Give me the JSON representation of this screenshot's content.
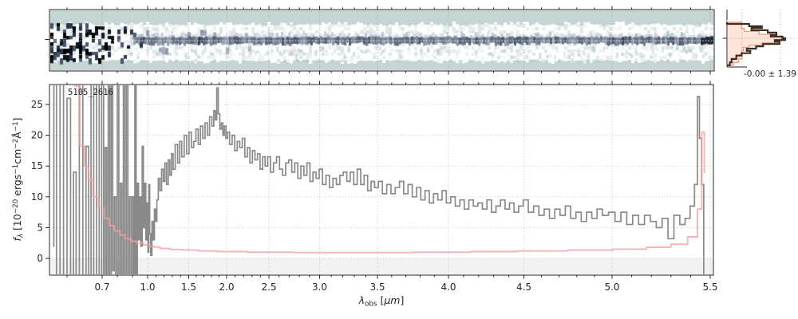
{
  "figure": {
    "object_label": "5105_2616",
    "residual_stats": "-0.00 ± 1.39",
    "xlabel_tokens": [
      [
        "λ",
        "i"
      ],
      [
        "obs",
        "sub"
      ],
      [
        " [",
        "n"
      ],
      [
        "μm",
        "i"
      ],
      [
        "]",
        "n"
      ]
    ],
    "ylabel_tokens": [
      [
        "f",
        "i"
      ],
      [
        "λ",
        "isub"
      ],
      [
        " [10",
        "n"
      ],
      [
        "−20",
        "sup"
      ],
      [
        " ergs",
        "n"
      ],
      [
        "−1",
        "sup"
      ],
      [
        "cm",
        "n"
      ],
      [
        "−2",
        "sup"
      ],
      [
        "Å",
        "n"
      ],
      [
        "−1",
        "sup"
      ],
      [
        "]",
        "n"
      ]
    ]
  },
  "colors": {
    "flux_line": "#8a8a8a",
    "error_line": "#f3a0a0",
    "grid": "#c3c3c3",
    "spine": "#262626",
    "twod_background": "#c4d5d4",
    "trace": "#3d4c64",
    "hist_data_line": "#3e2d24",
    "hist_model_fill": "rgba(246,150,108,0.25)",
    "hist_model_edge": "#f19b7c",
    "below_zero_shade": "rgba(0,0,0,0.05)"
  },
  "axes": {
    "x": {
      "tick_values": [
        0.7,
        1.0,
        1.5,
        2.0,
        2.5,
        3.0,
        3.5,
        4.0,
        4.5,
        5.0,
        5.5
      ],
      "tick_labels": [
        "0.7",
        "1.0",
        "1.5",
        "2.0",
        "2.5",
        "3.0",
        "3.5",
        "4.0",
        "4.5",
        "5.0",
        "5.5"
      ],
      "minor_step": 0.1,
      "range": [
        0.55,
        5.52
      ]
    },
    "y": {
      "tick_values": [
        0,
        5,
        10,
        15,
        20,
        25
      ],
      "tick_labels": [
        "0",
        "5",
        "10",
        "15",
        "20",
        "25"
      ],
      "range": [
        -2.8,
        28.2
      ]
    }
  },
  "chart_data": {
    "type": "line",
    "title": "",
    "xlabel": "lambda_obs [micron]",
    "ylabel": "f_lambda [1e-20 ergs-1 cm-2 A-1]",
    "xlim": [
      0.55,
      5.52
    ],
    "ylim": [
      -2.8,
      28.2
    ],
    "grid": true,
    "annotation": "5105_2616",
    "series": [
      {
        "name": "flux",
        "style": "steps-mid",
        "x": [
          0.56,
          0.565,
          0.575,
          0.585,
          0.595,
          0.605,
          0.615,
          0.622,
          0.63,
          0.64,
          0.65,
          0.658,
          0.665,
          0.672,
          0.68,
          0.688,
          0.695,
          0.705,
          0.715,
          0.725,
          0.735,
          0.745,
          0.755,
          0.765,
          0.775,
          0.785,
          0.795,
          0.805,
          0.815,
          0.825,
          0.835,
          0.845,
          0.855,
          0.865,
          0.875,
          0.885,
          0.895,
          0.905,
          0.912,
          0.92,
          0.928,
          0.936,
          0.944,
          0.952,
          0.96,
          0.968,
          0.976,
          0.984,
          0.992,
          1.0,
          1.01,
          1.02,
          1.03,
          1.045,
          1.06,
          1.075,
          1.09,
          1.105,
          1.12,
          1.14,
          1.16,
          1.18,
          1.2,
          1.22,
          1.24,
          1.26,
          1.28,
          1.3,
          1.32,
          1.35,
          1.38,
          1.4,
          1.43,
          1.46,
          1.49,
          1.52,
          1.55,
          1.58,
          1.61,
          1.64,
          1.67,
          1.7,
          1.73,
          1.76,
          1.79,
          1.82,
          1.84,
          1.86,
          1.88,
          1.9,
          1.92,
          1.94,
          1.96,
          1.98,
          2.0,
          2.02,
          2.05,
          2.08,
          2.11,
          2.14,
          2.17,
          2.2,
          2.23,
          2.26,
          2.29,
          2.32,
          2.35,
          2.38,
          2.41,
          2.44,
          2.47,
          2.5,
          2.53,
          2.56,
          2.59,
          2.62,
          2.65,
          2.68,
          2.71,
          2.74,
          2.77,
          2.8,
          2.83,
          2.86,
          2.89,
          2.92,
          2.95,
          2.98,
          3.01,
          3.04,
          3.07,
          3.1,
          3.13,
          3.16,
          3.19,
          3.22,
          3.25,
          3.28,
          3.31,
          3.34,
          3.37,
          3.4,
          3.43,
          3.46,
          3.49,
          3.52,
          3.55,
          3.58,
          3.61,
          3.64,
          3.67,
          3.7,
          3.73,
          3.76,
          3.79,
          3.82,
          3.85,
          3.88,
          3.91,
          3.94,
          3.97,
          4.0,
          4.03,
          4.06,
          4.09,
          4.12,
          4.15,
          4.18,
          4.21,
          4.24,
          4.27,
          4.3,
          4.33,
          4.36,
          4.39,
          4.42,
          4.45,
          4.48,
          4.51,
          4.54,
          4.57,
          4.6,
          4.63,
          4.66,
          4.69,
          4.72,
          4.75,
          4.78,
          4.81,
          4.84,
          4.87,
          4.9,
          4.93,
          4.96,
          5.0,
          5.03,
          5.06,
          5.09,
          5.12,
          5.15,
          5.18,
          5.21,
          5.24,
          5.27,
          5.3,
          5.33,
          5.36,
          5.385,
          5.41,
          5.43,
          5.44,
          5.45,
          5.462,
          5.472
        ],
        "y": [
          2,
          29,
          -4,
          29,
          -4,
          26,
          -4,
          14,
          -4,
          29,
          -4,
          18.2,
          -4,
          29,
          -4,
          29,
          -4,
          29,
          -4,
          18,
          -4,
          29,
          -4,
          29,
          -2,
          10,
          -4,
          29,
          -4,
          12.2,
          -4,
          29,
          -4,
          29,
          -4,
          10,
          -4,
          10,
          -4,
          29,
          -4,
          12.2,
          3,
          10,
          2,
          18.2,
          5,
          12.2,
          3,
          9,
          1,
          12,
          4,
          0.5,
          6,
          3,
          8,
          6,
          9.5,
          13,
          11,
          14.5,
          12.5,
          15.5,
          12,
          16,
          13.5,
          17,
          14.5,
          18.5,
          15.5,
          19,
          16.5,
          20,
          17,
          20.5,
          18,
          19,
          21,
          18.5,
          21.5,
          19.5,
          22,
          20,
          23,
          21.5,
          24,
          22.5,
          27.7,
          23.5,
          21,
          22,
          20,
          21.5,
          19.5,
          20.5,
          18.5,
          20,
          17.5,
          19,
          18,
          19.5,
          16.5,
          18,
          15.5,
          17.5,
          16,
          17,
          14.5,
          16.5,
          15,
          16.5,
          14,
          15.5,
          16.5,
          14.5,
          13.5,
          15.5,
          16,
          14,
          15.5,
          13,
          15,
          13.5,
          15.5,
          12.5,
          14,
          13,
          14.5,
          12,
          13.5,
          11.5,
          13,
          12,
          13.5,
          14,
          12.5,
          14,
          12,
          14.5,
          12,
          13.5,
          11,
          12.5,
          11.5,
          12.5,
          10.5,
          12,
          10.5,
          11.5,
          12.5,
          10.5,
          12,
          10,
          11.5,
          9.5,
          11,
          9,
          10.5,
          9.5,
          11,
          9,
          10,
          8.5,
          9.5,
          8,
          9.5,
          8.5,
          9,
          8,
          9.5,
          7.5,
          8.5,
          9.5,
          8,
          9,
          7.5,
          8.5,
          9.5,
          7.5,
          8.5,
          7,
          8,
          6.5,
          8,
          7,
          8.5,
          6.5,
          7.5,
          6,
          7.5,
          6.5,
          8,
          7,
          7.5,
          6,
          7.5,
          5.5,
          7,
          5.5,
          7,
          6,
          5,
          6.5,
          3.2,
          7,
          5.5,
          6.5,
          8.5,
          12,
          26.3,
          19.5,
          12,
          -4
        ]
      },
      {
        "name": "error",
        "style": "steps-mid",
        "x": [
          0.615,
          0.63,
          0.643,
          0.655,
          0.666,
          0.682,
          0.698,
          0.732,
          0.763,
          0.8,
          0.832,
          0.868,
          0.91,
          0.947,
          1.0,
          1.05,
          1.1,
          1.2,
          1.35,
          1.5,
          1.75,
          2.0,
          2.5,
          3.0,
          3.5,
          4.0,
          4.3,
          4.6,
          4.9,
          5.1,
          5.25,
          5.35,
          5.42,
          5.45,
          5.465,
          5.475
        ],
        "y": [
          29,
          28,
          18.3,
          15,
          12.8,
          10,
          8.2,
          6.5,
          5.3,
          4.5,
          3.8,
          3.2,
          2.8,
          2.5,
          2.2,
          2.0,
          1.85,
          1.6,
          1.45,
          1.35,
          1.2,
          1.1,
          1.0,
          0.95,
          0.95,
          1.0,
          1.1,
          1.2,
          1.35,
          1.5,
          1.8,
          2.3,
          3.5,
          8,
          20.5,
          14
        ]
      }
    ],
    "residual_hist": {
      "stats": "-0.00 ± 1.39",
      "data_y_rel": [
        0.22,
        0.25,
        0.29,
        0.32,
        0.36,
        0.4,
        0.44,
        0.47,
        0.5,
        0.53,
        0.56,
        0.6,
        0.64,
        0.68,
        0.72,
        0.76,
        0.8,
        0.86,
        0.92,
        0.97
      ],
      "data_w_rel": [
        0.0,
        0.38,
        0.6,
        0.42,
        0.7,
        0.85,
        0.75,
        0.95,
        1.0,
        0.82,
        0.9,
        0.62,
        0.5,
        0.34,
        0.4,
        0.25,
        0.16,
        0.08,
        0.05,
        0.0
      ],
      "model_y_rel": [
        0.18,
        0.22,
        0.28,
        0.33,
        0.38,
        0.43,
        0.47,
        0.5,
        0.54,
        0.58,
        0.62,
        0.66,
        0.72,
        0.8,
        0.86,
        0.92,
        0.97
      ],
      "model_w_rel": [
        0.0,
        0.25,
        0.25,
        0.3,
        0.55,
        0.8,
        0.97,
        1.0,
        0.88,
        0.6,
        0.38,
        0.28,
        0.26,
        0.26,
        0.2,
        0.11,
        0.0
      ]
    }
  }
}
